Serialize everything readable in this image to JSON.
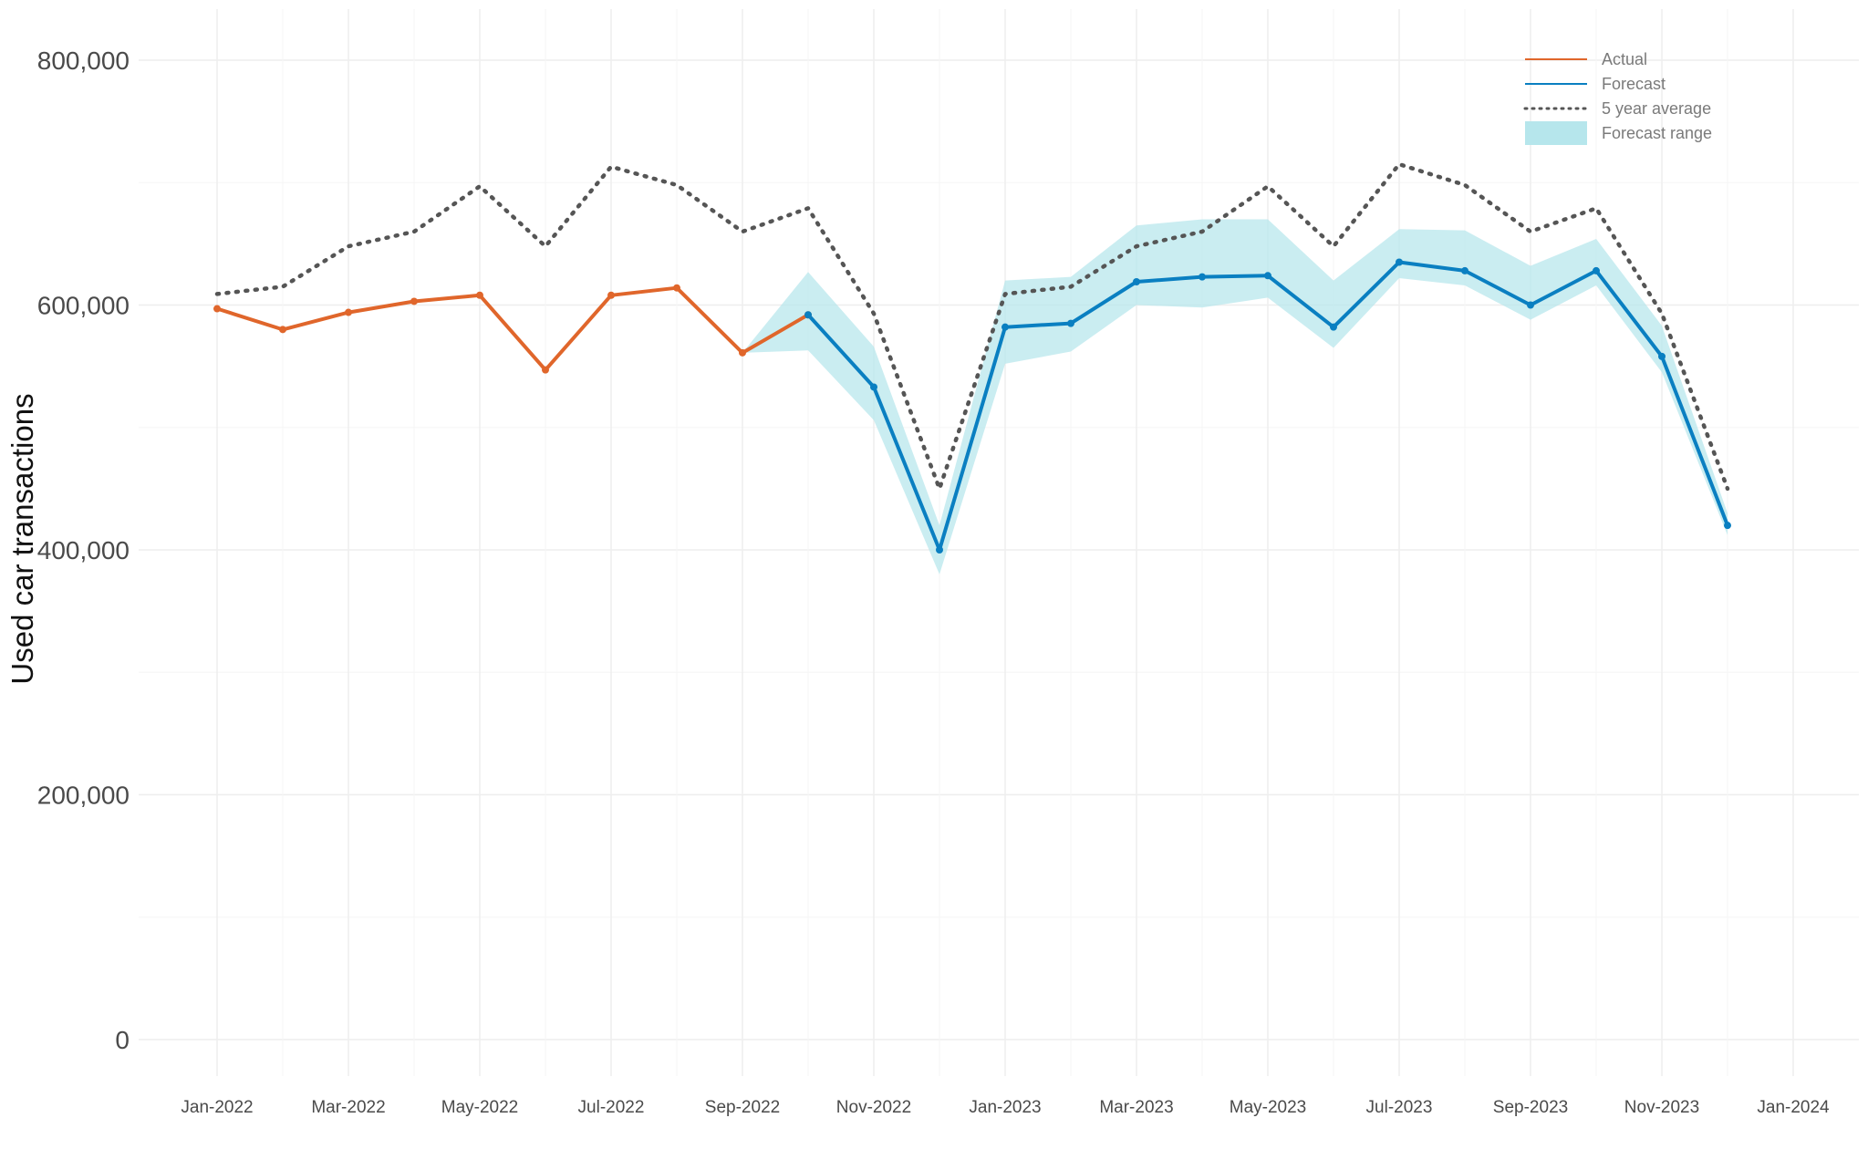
{
  "chart_data": {
    "type": "line",
    "title": "",
    "xlabel": "",
    "ylabel": "Used car transactions",
    "ylim": [
      0,
      800000
    ],
    "y_ticks": [
      0,
      200000,
      400000,
      600000,
      800000
    ],
    "y_tick_labels": [
      "0",
      "200,000",
      "400,000",
      "600,000",
      "800,000"
    ],
    "x_ticks": [
      "2022-01",
      "2022-03",
      "2022-05",
      "2022-07",
      "2022-09",
      "2022-11",
      "2023-01",
      "2023-03",
      "2023-05",
      "2023-07",
      "2023-09",
      "2023-11",
      "2024-01"
    ],
    "x_tick_labels": [
      "Jan-2022",
      "Mar-2022",
      "May-2022",
      "Jul-2022",
      "Sep-2022",
      "Nov-2022",
      "Jan-2023",
      "Mar-2023",
      "May-2023",
      "Jul-2023",
      "Sep-2023",
      "Nov-2023",
      "Jan-2024"
    ],
    "grid": true,
    "legend_position": "top-right",
    "colors": {
      "actual": "#e0662b",
      "forecast": "#0a7fc1",
      "average": "#555555",
      "range": "#b6e6ec"
    },
    "series": [
      {
        "name": "Actual",
        "style": "solid",
        "markers": true,
        "x": [
          "2022-01",
          "2022-02",
          "2022-03",
          "2022-04",
          "2022-05",
          "2022-06",
          "2022-07",
          "2022-08",
          "2022-09",
          "2022-10"
        ],
        "values": [
          597000,
          580000,
          594000,
          603000,
          608000,
          547000,
          608000,
          614000,
          561000,
          592000
        ]
      },
      {
        "name": "Forecast",
        "style": "solid",
        "markers": true,
        "x": [
          "2022-10",
          "2022-11",
          "2022-12",
          "2023-01",
          "2023-02",
          "2023-03",
          "2023-04",
          "2023-05",
          "2023-06",
          "2023-07",
          "2023-08",
          "2023-09",
          "2023-10",
          "2023-11",
          "2023-12"
        ],
        "values": [
          592000,
          533000,
          400000,
          582000,
          585000,
          619000,
          623000,
          624000,
          582000,
          635000,
          628000,
          600000,
          628000,
          558000,
          420000
        ]
      },
      {
        "name": "5 year average",
        "style": "dotted",
        "markers": false,
        "x": [
          "2022-01",
          "2022-02",
          "2022-03",
          "2022-04",
          "2022-05",
          "2022-06",
          "2022-07",
          "2022-08",
          "2022-09",
          "2022-10",
          "2022-11",
          "2022-12",
          "2023-01",
          "2023-02",
          "2023-03",
          "2023-04",
          "2023-05",
          "2023-06",
          "2023-07",
          "2023-08",
          "2023-09",
          "2023-10",
          "2023-11",
          "2023-12"
        ],
        "values": [
          609000,
          615000,
          648000,
          660000,
          697000,
          648000,
          713000,
          698000,
          660000,
          679000,
          593000,
          450000,
          609000,
          615000,
          648000,
          660000,
          697000,
          648000,
          715000,
          698000,
          660000,
          679000,
          593000,
          450000
        ]
      },
      {
        "name": "Forecast range",
        "style": "band",
        "x": [
          "2022-09",
          "2022-10",
          "2022-11",
          "2022-12",
          "2023-01",
          "2023-02",
          "2023-03",
          "2023-04",
          "2023-05",
          "2023-06",
          "2023-07",
          "2023-08",
          "2023-09",
          "2023-10",
          "2023-11",
          "2023-12"
        ],
        "lower": [
          561000,
          563000,
          506000,
          380000,
          552000,
          562000,
          600000,
          598000,
          606000,
          565000,
          622000,
          616000,
          588000,
          616000,
          545000,
          412000
        ],
        "upper": [
          561000,
          627000,
          566000,
          420000,
          620000,
          623000,
          665000,
          670000,
          670000,
          620000,
          662000,
          661000,
          632000,
          654000,
          583000,
          430000
        ]
      }
    ]
  }
}
